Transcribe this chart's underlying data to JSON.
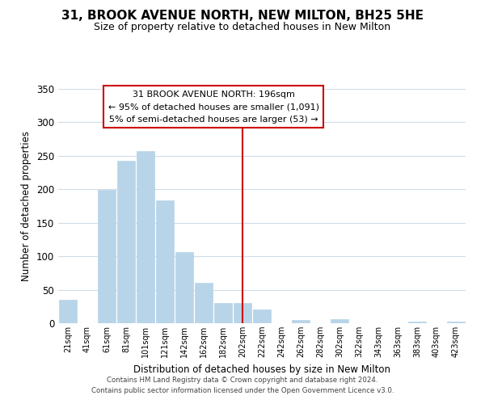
{
  "title": "31, BROOK AVENUE NORTH, NEW MILTON, BH25 5HE",
  "subtitle": "Size of property relative to detached houses in New Milton",
  "xlabel": "Distribution of detached houses by size in New Milton",
  "ylabel": "Number of detached properties",
  "bar_labels": [
    "21sqm",
    "41sqm",
    "61sqm",
    "81sqm",
    "101sqm",
    "121sqm",
    "142sqm",
    "162sqm",
    "182sqm",
    "202sqm",
    "222sqm",
    "242sqm",
    "262sqm",
    "282sqm",
    "302sqm",
    "322sqm",
    "343sqm",
    "363sqm",
    "383sqm",
    "403sqm",
    "423sqm"
  ],
  "bar_values": [
    35,
    0,
    199,
    242,
    257,
    184,
    106,
    60,
    30,
    30,
    21,
    0,
    5,
    0,
    6,
    0,
    0,
    0,
    2,
    0,
    2
  ],
  "bar_color": "#b8d4e8",
  "bar_edge_color": "#b8d4e8",
  "vline_x": 9,
  "vline_color": "#cc0000",
  "annotation_title": "31 BROOK AVENUE NORTH: 196sqm",
  "annotation_line1": "← 95% of detached houses are smaller (1,091)",
  "annotation_line2": "5% of semi-detached houses are larger (53) →",
  "annotation_box_facecolor": "white",
  "annotation_box_edgecolor": "#cc0000",
  "ylim": [
    0,
    350
  ],
  "yticks": [
    0,
    50,
    100,
    150,
    200,
    250,
    300,
    350
  ],
  "footer_line1": "Contains HM Land Registry data © Crown copyright and database right 2024.",
  "footer_line2": "Contains public sector information licensed under the Open Government Licence v3.0.",
  "background_color": "white",
  "grid_color": "#d0dce8"
}
